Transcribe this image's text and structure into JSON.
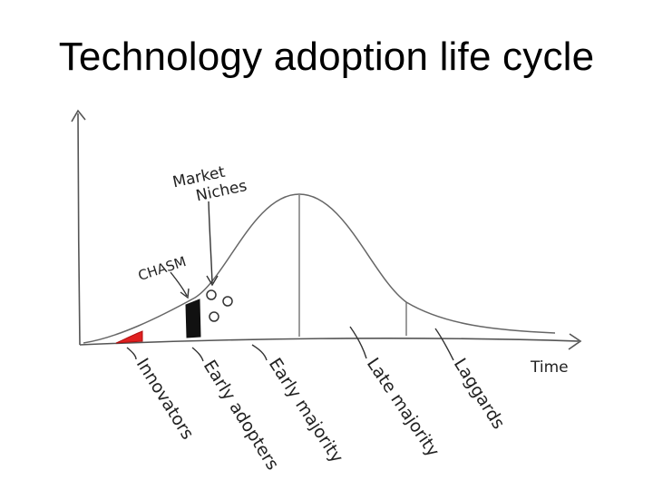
{
  "slide": {
    "title": "Technology adoption life cycle"
  },
  "diagram": {
    "x_axis_label": "Time",
    "annotations": {
      "market_niches": [
        "Market",
        "Niches"
      ],
      "chasm": "CHASM"
    },
    "segments": [
      {
        "label": "Innovators"
      },
      {
        "label": "Early adopters"
      },
      {
        "label": "Early majority"
      },
      {
        "label": "Late majority"
      },
      {
        "label": "Laggards"
      }
    ],
    "colors": {
      "innovators_fill": "#e02020",
      "chasm_fill": "#111111",
      "ink": "#333333"
    }
  }
}
